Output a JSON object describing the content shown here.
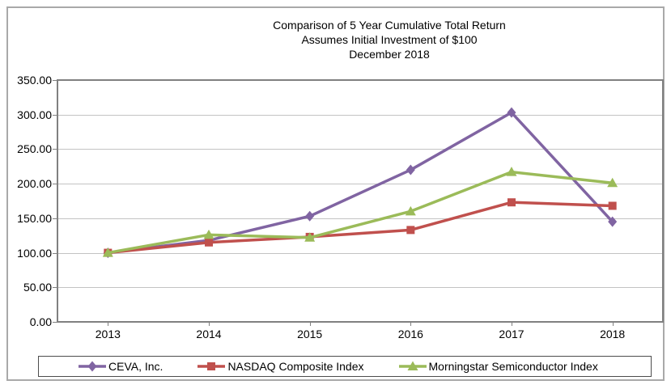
{
  "chart_data": {
    "type": "line",
    "title": "Comparison of 5 Year Cumulative Total Return",
    "subtitle1": "Assumes Initial Investment of $100",
    "subtitle2": "December 2018",
    "categories": [
      "2013",
      "2014",
      "2015",
      "2016",
      "2017",
      "2018"
    ],
    "series": [
      {
        "name": "CEVA, Inc.",
        "marker": "diamond",
        "color": "#8064A2",
        "values": [
          100,
          118,
          153,
          220,
          303,
          145
        ]
      },
      {
        "name": "NASDAQ Composite Index",
        "marker": "square",
        "color": "#C0504D",
        "values": [
          100,
          115,
          123,
          133,
          173,
          168
        ]
      },
      {
        "name": "Morningstar Semiconductor Index",
        "marker": "triangle",
        "color": "#9BBB59",
        "values": [
          100,
          126,
          122,
          160,
          217,
          201
        ]
      }
    ],
    "ylim": [
      0,
      350
    ],
    "ytick_step": 50,
    "ytick_labels": [
      "0.00",
      "50.00",
      "100.00",
      "150.00",
      "200.00",
      "250.00",
      "300.00",
      "350.00"
    ],
    "grid": true,
    "legend_position": "bottom",
    "xlabel": "",
    "ylabel": ""
  },
  "colors": {
    "background": "#ffffff",
    "outer_border": "#a9a9a9",
    "plot_border": "#808080",
    "gridline": "#c3c3c3",
    "tick": "#808080",
    "legend_border": "#4d4d4d",
    "text": "#000000"
  }
}
